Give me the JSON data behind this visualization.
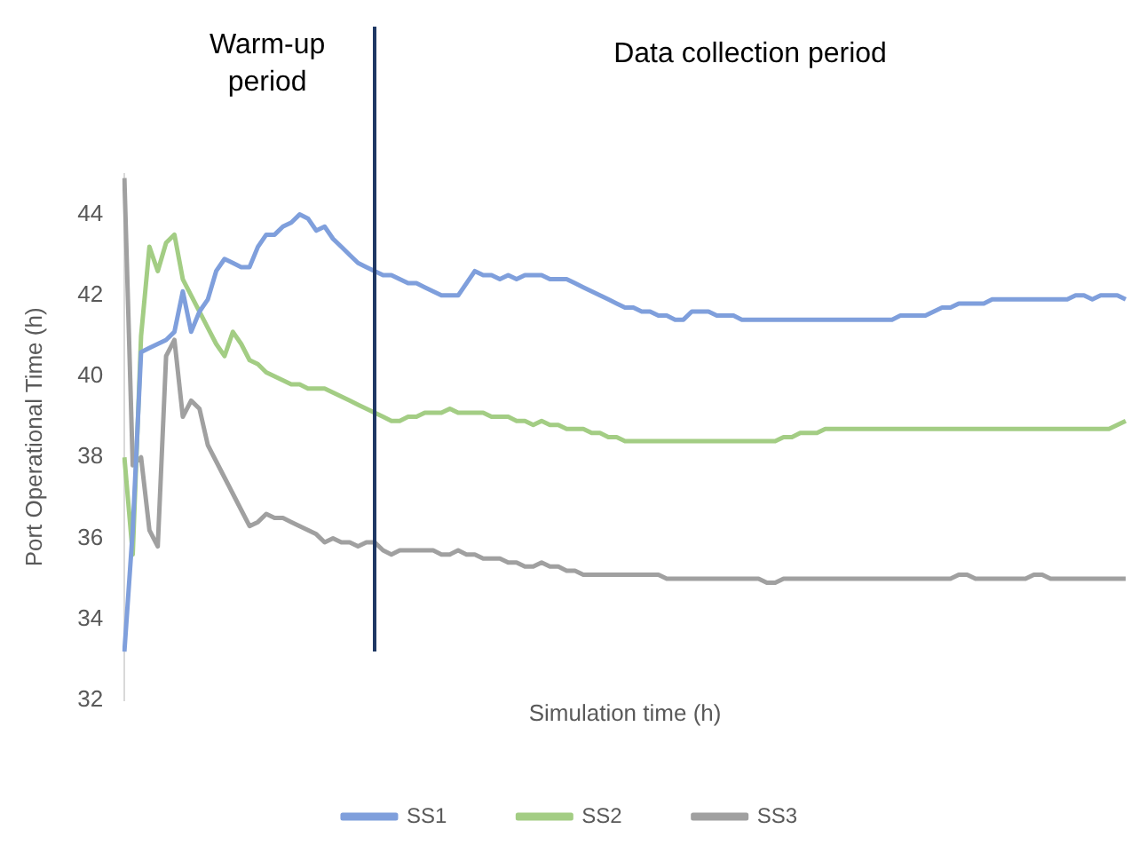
{
  "chart_data": {
    "type": "line",
    "xlabel": "Simulation time (h)",
    "ylabel": "Port Operational Time (h)",
    "categories": [
      null,
      null,
      null,
      null,
      null,
      null,
      null,
      null,
      null,
      null,
      null,
      null,
      null,
      null,
      null,
      null,
      null,
      null,
      null,
      null,
      null,
      null,
      null,
      null,
      null,
      null,
      null,
      null,
      null,
      null,
      null,
      null,
      null,
      null,
      null,
      null,
      null,
      null,
      null,
      null,
      null,
      null,
      null,
      null,
      null,
      null,
      null,
      null,
      null,
      null,
      null,
      null,
      null,
      null,
      null,
      null,
      null,
      null,
      null,
      null,
      null,
      null,
      null,
      null,
      null,
      null,
      null,
      null,
      null,
      null,
      null,
      null,
      null,
      null,
      null,
      null,
      null,
      null,
      null,
      null,
      null,
      null,
      null,
      null,
      null,
      null,
      null,
      null,
      null,
      null,
      null,
      null,
      null,
      null,
      null,
      null,
      null,
      null,
      null,
      null,
      null,
      null,
      null,
      null,
      null,
      null,
      null,
      null,
      null,
      null,
      null,
      null,
      null,
      null,
      null,
      null,
      null,
      null,
      null,
      null,
      null
    ],
    "series": [
      {
        "name": "SS1",
        "color": "#7f9fdc",
        "values": [
          33.2,
          36.2,
          40.6,
          40.7,
          40.8,
          40.9,
          41.1,
          42.1,
          41.1,
          41.6,
          41.9,
          42.6,
          42.9,
          42.8,
          42.7,
          42.7,
          43.2,
          43.5,
          43.5,
          43.7,
          43.8,
          44.0,
          43.9,
          43.6,
          43.7,
          43.4,
          43.2,
          43.0,
          42.8,
          42.7,
          42.6,
          42.5,
          42.5,
          42.4,
          42.3,
          42.3,
          42.2,
          42.1,
          42.0,
          42.0,
          42.0,
          42.3,
          42.6,
          42.5,
          42.5,
          42.4,
          42.5,
          42.4,
          42.5,
          42.5,
          42.5,
          42.4,
          42.4,
          42.4,
          42.3,
          42.2,
          42.1,
          42.0,
          41.9,
          41.8,
          41.7,
          41.7,
          41.6,
          41.6,
          41.5,
          41.5,
          41.4,
          41.4,
          41.6,
          41.6,
          41.6,
          41.5,
          41.5,
          41.5,
          41.4,
          41.4,
          41.4,
          41.4,
          41.4,
          41.4,
          41.4,
          41.4,
          41.4,
          41.4,
          41.4,
          41.4,
          41.4,
          41.4,
          41.4,
          41.4,
          41.4,
          41.4,
          41.4,
          41.5,
          41.5,
          41.5,
          41.5,
          41.6,
          41.7,
          41.7,
          41.8,
          41.8,
          41.8,
          41.8,
          41.9,
          41.9,
          41.9,
          41.9,
          41.9,
          41.9,
          41.9,
          41.9,
          41.9,
          41.9,
          42.0,
          42.0,
          41.9,
          42.0,
          42.0,
          42.0,
          41.9
        ]
      },
      {
        "name": "SS2",
        "color": "#a3cd84",
        "values": [
          38.0,
          35.6,
          41.0,
          43.2,
          42.6,
          43.3,
          43.5,
          42.4,
          42.0,
          41.6,
          41.2,
          40.8,
          40.5,
          41.1,
          40.8,
          40.4,
          40.3,
          40.1,
          40.0,
          39.9,
          39.8,
          39.8,
          39.7,
          39.7,
          39.7,
          39.6,
          39.5,
          39.4,
          39.3,
          39.2,
          39.1,
          39.0,
          38.9,
          38.9,
          39.0,
          39.0,
          39.1,
          39.1,
          39.1,
          39.2,
          39.1,
          39.1,
          39.1,
          39.1,
          39.0,
          39.0,
          39.0,
          38.9,
          38.9,
          38.8,
          38.9,
          38.8,
          38.8,
          38.7,
          38.7,
          38.7,
          38.6,
          38.6,
          38.5,
          38.5,
          38.4,
          38.4,
          38.4,
          38.4,
          38.4,
          38.4,
          38.4,
          38.4,
          38.4,
          38.4,
          38.4,
          38.4,
          38.4,
          38.4,
          38.4,
          38.4,
          38.4,
          38.4,
          38.4,
          38.5,
          38.5,
          38.6,
          38.6,
          38.6,
          38.7,
          38.7,
          38.7,
          38.7,
          38.7,
          38.7,
          38.7,
          38.7,
          38.7,
          38.7,
          38.7,
          38.7,
          38.7,
          38.7,
          38.7,
          38.7,
          38.7,
          38.7,
          38.7,
          38.7,
          38.7,
          38.7,
          38.7,
          38.7,
          38.7,
          38.7,
          38.7,
          38.7,
          38.7,
          38.7,
          38.7,
          38.7,
          38.7,
          38.7,
          38.7,
          38.8,
          38.9
        ]
      },
      {
        "name": "SS3",
        "color": "#a0a0a0",
        "values": [
          44.9,
          37.8,
          38.0,
          36.2,
          35.8,
          40.5,
          40.9,
          39.0,
          39.4,
          39.2,
          38.3,
          37.9,
          37.5,
          37.1,
          36.7,
          36.3,
          36.4,
          36.6,
          36.5,
          36.5,
          36.4,
          36.3,
          36.2,
          36.1,
          35.9,
          36.0,
          35.9,
          35.9,
          35.8,
          35.9,
          35.9,
          35.7,
          35.6,
          35.7,
          35.7,
          35.7,
          35.7,
          35.7,
          35.6,
          35.6,
          35.7,
          35.6,
          35.6,
          35.5,
          35.5,
          35.5,
          35.4,
          35.4,
          35.3,
          35.3,
          35.4,
          35.3,
          35.3,
          35.2,
          35.2,
          35.1,
          35.1,
          35.1,
          35.1,
          35.1,
          35.1,
          35.1,
          35.1,
          35.1,
          35.1,
          35.0,
          35.0,
          35.0,
          35.0,
          35.0,
          35.0,
          35.0,
          35.0,
          35.0,
          35.0,
          35.0,
          35.0,
          34.9,
          34.9,
          35.0,
          35.0,
          35.0,
          35.0,
          35.0,
          35.0,
          35.0,
          35.0,
          35.0,
          35.0,
          35.0,
          35.0,
          35.0,
          35.0,
          35.0,
          35.0,
          35.0,
          35.0,
          35.0,
          35.0,
          35.0,
          35.1,
          35.1,
          35.0,
          35.0,
          35.0,
          35.0,
          35.0,
          35.0,
          35.0,
          35.1,
          35.1,
          35.0,
          35.0,
          35.0,
          35.0,
          35.0,
          35.0,
          35.0,
          35.0,
          35.0,
          35.0
        ]
      }
    ],
    "ylim": [
      32,
      45
    ],
    "yticks": [
      32,
      34,
      36,
      38,
      40,
      42,
      44
    ],
    "grid": false,
    "legend": "bottom",
    "tick_labels": "y",
    "marker": "none",
    "line_style": "solid",
    "annotations": [
      "Warm-up period",
      "Data collection period"
    ]
  }
}
